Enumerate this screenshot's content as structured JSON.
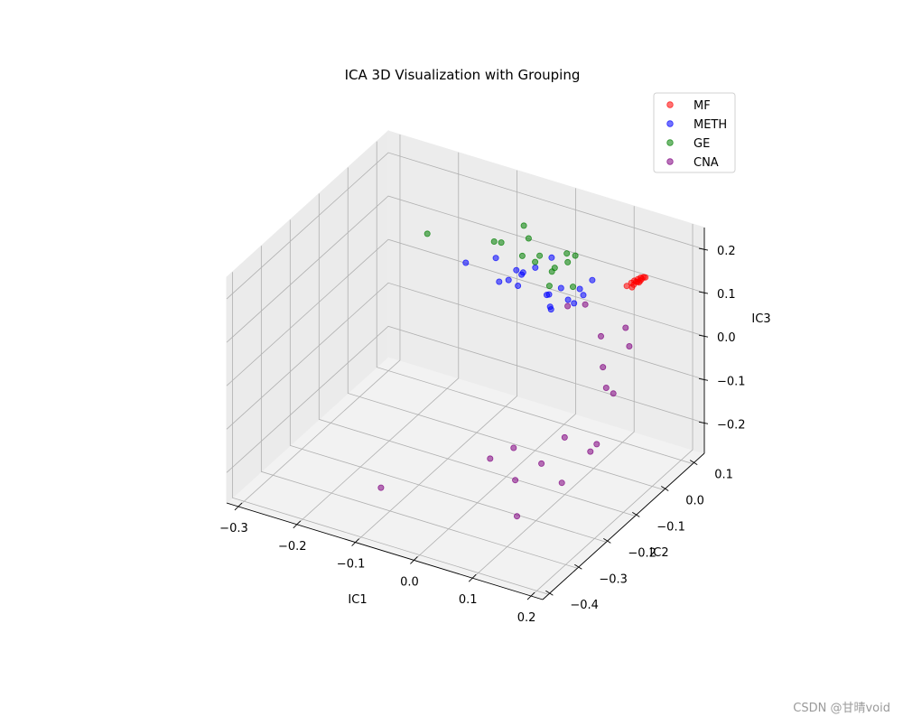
{
  "watermark": "CSDN @甘晴void",
  "chart_data": {
    "type": "scatter",
    "projection": "3d",
    "title": "ICA 3D Visualization with Grouping",
    "xlabel": "IC1",
    "ylabel": "IC2",
    "zlabel": "IC3",
    "xlim": [
      -0.32,
      0.22
    ],
    "ylim": [
      -0.42,
      0.14
    ],
    "zlim": [
      -0.27,
      0.25
    ],
    "xticks": [
      -0.3,
      -0.2,
      -0.1,
      0.0,
      0.1,
      0.2
    ],
    "xtick_labels": [
      "−0.3",
      "−0.2",
      "−0.1",
      "0.0",
      "0.1",
      "0.2"
    ],
    "yticks": [
      -0.4,
      -0.3,
      -0.2,
      -0.1,
      0.0,
      0.1
    ],
    "ytick_labels": [
      "−0.4",
      "−0.3",
      "−0.2",
      "−0.1",
      "0.0",
      "0.1"
    ],
    "zticks": [
      -0.2,
      -0.1,
      0.0,
      0.1,
      0.2
    ],
    "ztick_labels": [
      "−0.2",
      "−0.1",
      "0.0",
      "0.1",
      "0.2"
    ],
    "grid": true,
    "legend_position": "top-right",
    "series": [
      {
        "name": "MF",
        "color": "#ff0000",
        "points": [
          [
            0.124,
            0.082,
            0.118
          ],
          [
            0.126,
            0.088,
            0.12
          ],
          [
            0.129,
            0.094,
            0.121
          ],
          [
            0.131,
            0.1,
            0.122
          ],
          [
            0.126,
            0.086,
            0.112
          ],
          [
            0.134,
            0.104,
            0.122
          ],
          [
            0.136,
            0.106,
            0.121
          ],
          [
            0.128,
            0.09,
            0.117
          ],
          [
            0.133,
            0.1,
            0.12
          ],
          [
            0.12,
            0.074,
            0.114
          ],
          [
            0.13,
            0.096,
            0.113
          ],
          [
            0.123,
            0.086,
            0.105
          ],
          [
            0.132,
            0.097,
            0.117
          ],
          [
            0.129,
            0.093,
            0.116
          ]
        ]
      },
      {
        "name": "METH",
        "color": "#0000ff",
        "points": [
          [
            -0.16,
            0.084,
            0.046
          ],
          [
            -0.116,
            0.099,
            0.066
          ],
          [
            -0.08,
            0.097,
            0.054
          ],
          [
            -0.052,
            0.106,
            0.066
          ],
          [
            -0.072,
            0.099,
            0.046
          ],
          [
            -0.033,
            0.124,
            0.086
          ],
          [
            -0.076,
            0.062,
            0.054
          ],
          [
            -0.096,
            0.07,
            0.037
          ],
          [
            -0.064,
            0.07,
            0.041
          ],
          [
            0.02,
            0.049,
            0.083
          ],
          [
            0.006,
            0.028,
            0.074
          ],
          [
            0.042,
            0.029,
            0.077
          ],
          [
            0.022,
            0.007,
            0.066
          ],
          [
            0.03,
            -0.006,
            0.071
          ],
          [
            0.055,
            0.043,
            0.099
          ],
          [
            0.06,
            0.013,
            0.086
          ],
          [
            0.004,
            0.04,
            0.067
          ],
          [
            -0.065,
            0.09,
            0.059
          ],
          [
            0.072,
            0.021,
            0.105
          ],
          [
            0.069,
            0.058,
            0.116
          ]
        ]
      },
      {
        "name": "GE",
        "color": "#008000",
        "points": [
          [
            -0.242,
            0.117,
            0.059
          ],
          [
            -0.12,
            0.101,
            0.101
          ],
          [
            -0.088,
            0.061,
            0.136
          ],
          [
            -0.08,
            0.123,
            0.141
          ],
          [
            -0.062,
            0.103,
            0.131
          ],
          [
            -0.018,
            0.052,
            0.14
          ],
          [
            -0.007,
            0.014,
            0.153
          ],
          [
            0.024,
            0.061,
            0.157
          ],
          [
            0.036,
            0.066,
            0.154
          ],
          [
            0.032,
            0.048,
            0.148
          ],
          [
            0.03,
            0.007,
            0.159
          ],
          [
            0.036,
            -0.015,
            0.166
          ],
          [
            -0.057,
            0.071,
            0.112
          ],
          [
            0.05,
            -0.052,
            0.161
          ],
          [
            0.074,
            -0.019,
            0.149
          ]
        ]
      },
      {
        "name": "CNA",
        "color": "#800080",
        "points": [
          [
            0.087,
            -0.064,
            0.137
          ],
          [
            0.12,
            -0.07,
            0.158
          ],
          [
            0.101,
            0.023,
            0.021
          ],
          [
            0.12,
            0.07,
            0.02
          ],
          [
            0.134,
            -0.001,
            -0.083
          ],
          [
            0.111,
            0.101,
            -0.045
          ],
          [
            0.1,
            0.032,
            -0.056
          ],
          [
            0.112,
            0.019,
            -0.091
          ],
          [
            0.118,
            -0.048,
            -0.195
          ],
          [
            0.073,
            -0.046,
            -0.182
          ],
          [
            0.12,
            -0.03,
            -0.188
          ],
          [
            0.077,
            -0.225,
            -0.171
          ],
          [
            0.095,
            -0.171,
            -0.158
          ],
          [
            0.125,
            -0.161,
            -0.196
          ],
          [
            0.102,
            -0.27,
            -0.217
          ],
          [
            0.046,
            -0.168,
            -0.144
          ],
          [
            0.041,
            -0.239,
            -0.128
          ],
          [
            -0.082,
            -0.368,
            -0.168
          ]
        ]
      }
    ]
  }
}
